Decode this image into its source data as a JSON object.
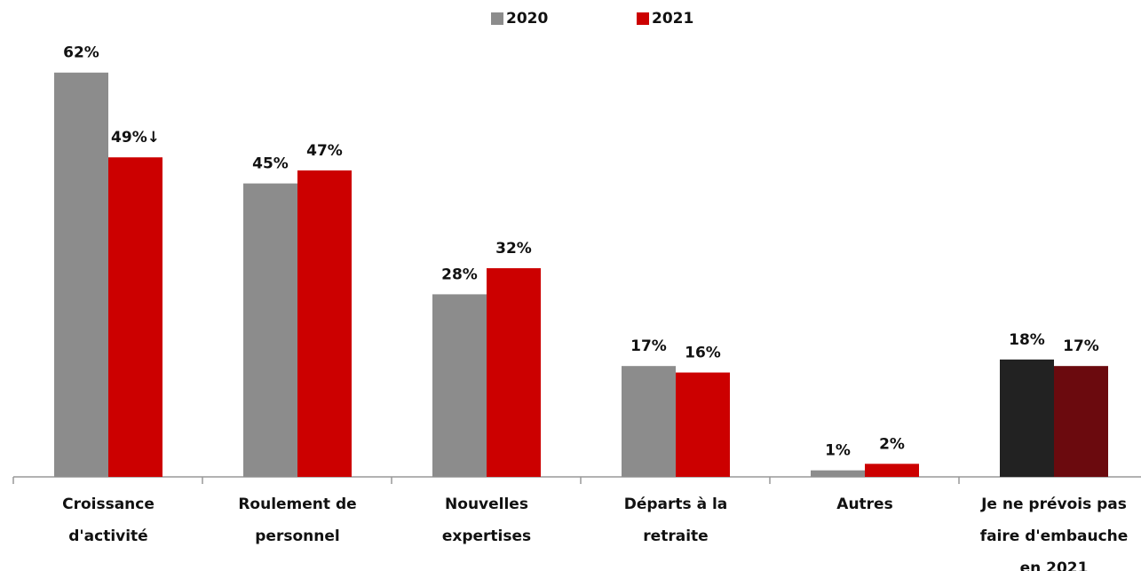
{
  "chart_data": {
    "type": "bar",
    "categories": [
      [
        "Croissance",
        "d'activité"
      ],
      [
        "Roulement de",
        "personnel"
      ],
      [
        "Nouvelles",
        "expertises"
      ],
      [
        "Départs à la",
        "retraite"
      ],
      [
        "Autres"
      ],
      [
        "Je ne prévois pas",
        "faire d'embauche",
        "en 2021"
      ]
    ],
    "series": [
      {
        "name": "2020",
        "color": "#8c8c8c",
        "colors": [
          "#8c8c8c",
          "#8c8c8c",
          "#8c8c8c",
          "#8c8c8c",
          "#8c8c8c",
          "#222222"
        ],
        "values": [
          62,
          45,
          28,
          17,
          1,
          18
        ],
        "value_labels": [
          "62%",
          "45%",
          "28%",
          "17%",
          "1%",
          "18%"
        ]
      },
      {
        "name": "2021",
        "color": "#cc0000",
        "colors": [
          "#cc0000",
          "#cc0000",
          "#cc0000",
          "#cc0000",
          "#cc0000",
          "#6b0a0e"
        ],
        "values": [
          49,
          47,
          32,
          16,
          2,
          17
        ],
        "value_labels": [
          "49%↓",
          "47%",
          "32%",
          "16%",
          "2%",
          "17%"
        ]
      }
    ],
    "ylim": [
      0,
      70
    ],
    "grid": false
  }
}
